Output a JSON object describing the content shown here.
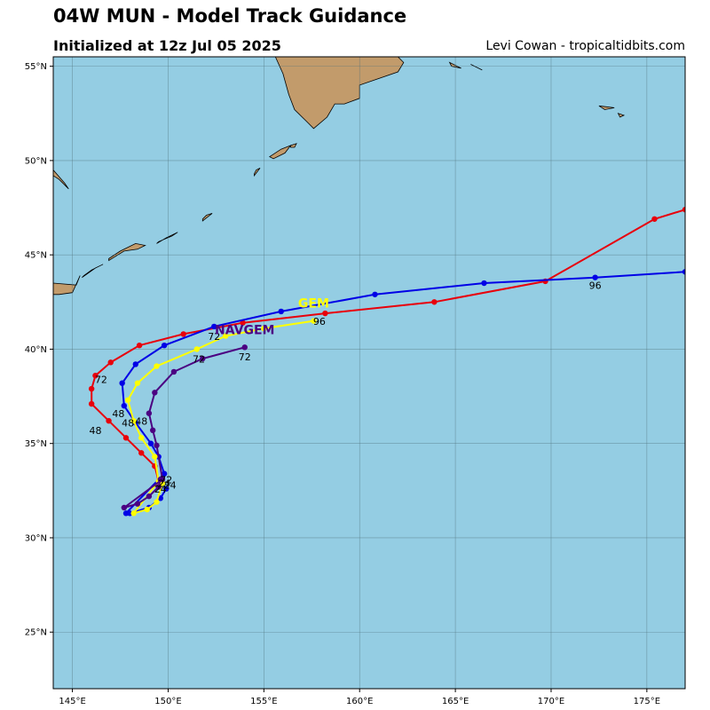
{
  "header": {
    "title": "04W MUN - Model Track Guidance",
    "subtitle": "Initialized at 12z Jul 05 2025",
    "credit": "Levi Cowan - tropicaltidbits.com"
  },
  "colors": {
    "ocean": "#94cde3",
    "land": "#c29b6b",
    "grid": "#4f6f7a"
  },
  "map": {
    "lon_range": [
      144,
      177
    ],
    "lat_range": [
      22,
      55.5
    ],
    "lon_ticks": [
      {
        "value": 145,
        "label": "145°E"
      },
      {
        "value": 150,
        "label": "150°E"
      },
      {
        "value": 155,
        "label": "155°E"
      },
      {
        "value": 160,
        "label": "160°E"
      },
      {
        "value": 165,
        "label": "165°E"
      },
      {
        "value": 170,
        "label": "170°E"
      },
      {
        "value": 175,
        "label": "175°E"
      }
    ],
    "lat_ticks": [
      {
        "value": 25,
        "label": "25°N"
      },
      {
        "value": 30,
        "label": "30°N"
      },
      {
        "value": 35,
        "label": "35°N"
      },
      {
        "value": 40,
        "label": "40°N"
      },
      {
        "value": 45,
        "label": "45°N"
      },
      {
        "value": 50,
        "label": "50°N"
      },
      {
        "value": 55,
        "label": "55°N"
      }
    ],
    "land": [
      {
        "name": "kamchatka",
        "points": [
          [
            155.6,
            55.5
          ],
          [
            156.0,
            54.6
          ],
          [
            156.3,
            53.5
          ],
          [
            156.6,
            52.7
          ],
          [
            157.3,
            52.0
          ],
          [
            157.6,
            51.7
          ],
          [
            158.3,
            52.3
          ],
          [
            158.7,
            53.0
          ],
          [
            159.2,
            53.0
          ],
          [
            160.0,
            53.3
          ],
          [
            160.0,
            54.0
          ],
          [
            162.0,
            54.7
          ],
          [
            162.3,
            55.2
          ],
          [
            162.0,
            55.5
          ]
        ]
      },
      {
        "name": "hokkaido",
        "points": [
          [
            144,
            43.5
          ],
          [
            145.2,
            43.4
          ],
          [
            145.4,
            43.9
          ],
          [
            145.0,
            43.0
          ],
          [
            144.3,
            42.9
          ],
          [
            144,
            42.9
          ]
        ]
      },
      {
        "name": "sakhalin-tip",
        "points": [
          [
            144,
            49.5
          ],
          [
            144.6,
            48.8
          ],
          [
            144.8,
            48.5
          ],
          [
            144.3,
            49.0
          ],
          [
            144,
            49.2
          ]
        ]
      },
      {
        "name": "kunashir",
        "points": [
          [
            145.5,
            43.8
          ],
          [
            146.2,
            44.3
          ],
          [
            146.6,
            44.5
          ],
          [
            146.0,
            44.2
          ],
          [
            145.6,
            43.9
          ]
        ]
      },
      {
        "name": "iturup",
        "points": [
          [
            146.9,
            44.7
          ],
          [
            147.7,
            45.2
          ],
          [
            148.4,
            45.3
          ],
          [
            148.8,
            45.5
          ],
          [
            148.3,
            45.6
          ],
          [
            147.5,
            45.2
          ],
          [
            146.9,
            44.8
          ]
        ]
      },
      {
        "name": "urup",
        "points": [
          [
            149.4,
            45.6
          ],
          [
            149.9,
            45.9
          ],
          [
            150.5,
            46.2
          ],
          [
            150.2,
            46.0
          ],
          [
            149.5,
            45.7
          ]
        ]
      },
      {
        "name": "simushir",
        "points": [
          [
            151.8,
            46.8
          ],
          [
            152.3,
            47.2
          ],
          [
            152.0,
            47.1
          ],
          [
            151.8,
            46.9
          ]
        ]
      },
      {
        "name": "onekotan",
        "points": [
          [
            154.5,
            49.2
          ],
          [
            154.8,
            49.6
          ],
          [
            154.6,
            49.5
          ],
          [
            154.5,
            49.3
          ]
        ]
      },
      {
        "name": "paramushir",
        "points": [
          [
            155.3,
            50.2
          ],
          [
            155.9,
            50.6
          ],
          [
            156.4,
            50.8
          ],
          [
            156.1,
            50.4
          ],
          [
            155.5,
            50.1
          ]
        ]
      },
      {
        "name": "shumshu",
        "points": [
          [
            156.4,
            50.8
          ],
          [
            156.7,
            50.9
          ],
          [
            156.6,
            50.7
          ],
          [
            156.4,
            50.7
          ]
        ]
      },
      {
        "name": "karaginsky",
        "points": [
          [
            164.7,
            55.2
          ],
          [
            165.3,
            54.9
          ],
          [
            164.8,
            55.0
          ]
        ]
      },
      {
        "name": "commander-bering",
        "points": [
          [
            165.8,
            55.1
          ],
          [
            166.4,
            54.8
          ],
          [
            166.0,
            55.0
          ]
        ]
      },
      {
        "name": "attu",
        "points": [
          [
            172.5,
            52.9
          ],
          [
            173.3,
            52.8
          ],
          [
            172.8,
            52.7
          ]
        ]
      },
      {
        "name": "agattu",
        "points": [
          [
            173.5,
            52.5
          ],
          [
            173.8,
            52.4
          ],
          [
            173.6,
            52.3
          ]
        ]
      }
    ]
  },
  "chart_data": {
    "type": "scatter",
    "title": "04W MUN - Model Track Guidance",
    "subtitle": "Initialized at 12z Jul 05 2025",
    "xlabel": "",
    "ylabel": "",
    "xlim": [
      144,
      177
    ],
    "ylim": [
      22,
      55.5
    ],
    "series": [
      {
        "name": "",
        "color": "#e8000b",
        "points": [
          [
            149.5,
            33.0
          ],
          [
            149.3,
            33.8
          ],
          [
            148.6,
            34.5
          ],
          [
            147.8,
            35.3
          ],
          [
            146.9,
            36.2
          ],
          [
            146.0,
            37.1
          ],
          [
            146.0,
            37.9
          ],
          [
            146.2,
            38.6
          ],
          [
            147.0,
            39.3
          ],
          [
            148.5,
            40.2
          ],
          [
            150.8,
            40.8
          ],
          [
            153.9,
            41.4
          ],
          [
            158.2,
            41.9
          ],
          [
            163.9,
            42.5
          ],
          [
            169.7,
            43.6
          ],
          [
            175.4,
            46.9
          ],
          [
            177.0,
            47.4
          ]
        ],
        "labels": [
          {
            "text": "48",
            "lon": 146.2,
            "lat": 35.5
          },
          {
            "text": "72",
            "lon": 146.5,
            "lat": 38.2
          }
        ],
        "model_label": ""
      },
      {
        "name": "",
        "color": "#0000e6",
        "points": [
          [
            149.9,
            32.6
          ],
          [
            149.6,
            32.1
          ],
          [
            149.0,
            31.6
          ],
          [
            148.0,
            31.3
          ],
          [
            147.8,
            31.3
          ],
          [
            149.8,
            33.4
          ],
          [
            149.5,
            34.3
          ],
          [
            149.1,
            35.0
          ],
          [
            148.3,
            36.1
          ],
          [
            147.7,
            37.0
          ],
          [
            147.6,
            38.2
          ],
          [
            148.3,
            39.2
          ],
          [
            149.8,
            40.2
          ],
          [
            152.4,
            41.2
          ],
          [
            155.9,
            42.0
          ],
          [
            160.8,
            42.9
          ],
          [
            166.5,
            43.5
          ],
          [
            172.3,
            43.8
          ],
          [
            177.0,
            44.1
          ]
        ],
        "labels": [
          {
            "text": "48",
            "lon": 147.4,
            "lat": 36.4
          },
          {
            "text": "72",
            "lon": 152.4,
            "lat": 40.5
          },
          {
            "text": "96",
            "lon": 172.3,
            "lat": 43.2
          }
        ],
        "model_label": ""
      },
      {
        "name": "GEM",
        "color": "#ffff00",
        "points": [
          [
            149.7,
            32.9
          ],
          [
            149.4,
            31.9
          ],
          [
            148.9,
            31.5
          ],
          [
            148.2,
            31.3
          ],
          [
            149.5,
            33.0
          ],
          [
            149.3,
            34.3
          ],
          [
            148.6,
            35.3
          ],
          [
            148.2,
            36.2
          ],
          [
            147.9,
            37.3
          ],
          [
            148.4,
            38.2
          ],
          [
            149.4,
            39.1
          ],
          [
            151.5,
            40.0
          ],
          [
            153.0,
            40.7
          ],
          [
            155.0,
            41.1
          ],
          [
            157.6,
            41.5
          ]
        ],
        "labels": [
          {
            "text": "48",
            "lon": 147.9,
            "lat": 35.9
          },
          {
            "text": "72",
            "lon": 151.6,
            "lat": 39.3
          },
          {
            "text": "96",
            "lon": 157.9,
            "lat": 41.3
          }
        ],
        "model_label": "GEM"
      },
      {
        "name": "NAVGEM",
        "color": "#4b0082",
        "points": [
          [
            149.6,
            33.1
          ],
          [
            149.5,
            32.7
          ],
          [
            149.0,
            32.2
          ],
          [
            148.4,
            31.8
          ],
          [
            147.7,
            31.6
          ],
          [
            149.7,
            33.1
          ],
          [
            149.4,
            34.9
          ],
          [
            149.2,
            35.7
          ],
          [
            149.0,
            36.6
          ],
          [
            149.3,
            37.7
          ],
          [
            150.3,
            38.8
          ],
          [
            151.8,
            39.5
          ],
          [
            154.0,
            40.1
          ]
        ],
        "labels": [
          {
            "text": "48",
            "lon": 148.6,
            "lat": 36.0
          },
          {
            "text": "72",
            "lon": 154.0,
            "lat": 39.4
          }
        ],
        "model_label": "NAVGEM"
      }
    ],
    "cluster_labels": [
      "72",
      "24",
      "24",
      "24"
    ]
  }
}
